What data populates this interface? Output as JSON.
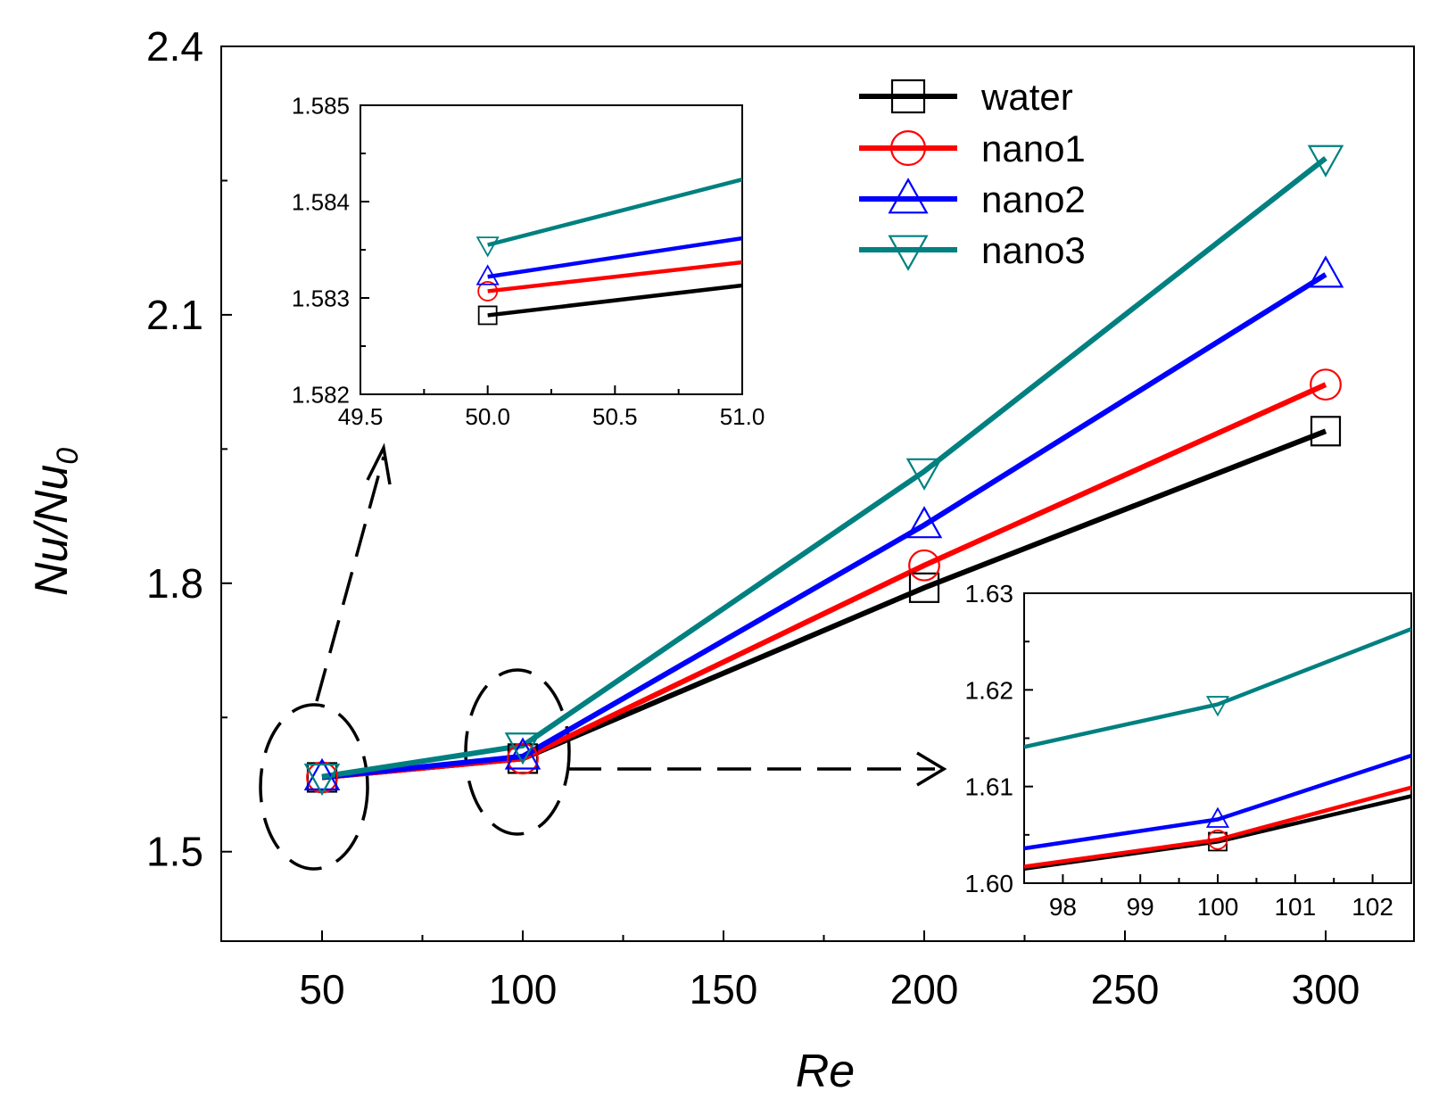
{
  "chart_data": [
    {
      "type": "line",
      "role": "main",
      "categories": [
        "50",
        "100",
        "200",
        "300"
      ],
      "xlabel": "Re",
      "ylabel": "Nu/Nu",
      "ylabel_sub": "0",
      "x_tick_labels": [
        "50",
        "100",
        "150",
        "200",
        "250",
        "300"
      ],
      "y_tick_labels": [
        "1.5",
        "1.8",
        "2.1",
        "2.4"
      ],
      "ylim": [
        1.4,
        2.4
      ],
      "series": [
        {
          "name": "water",
          "marker": "square",
          "color": "#000000",
          "values": [
            1.583,
            1.604,
            1.795,
            1.97
          ]
        },
        {
          "name": "nano1",
          "marker": "circle",
          "color": "#ff0000",
          "values": [
            1.583,
            1.604,
            1.82,
            2.022
          ]
        },
        {
          "name": "nano2",
          "marker": "triangle-up",
          "color": "#0000ff",
          "values": [
            1.5832,
            1.6065,
            1.865,
            2.145
          ]
        },
        {
          "name": "nano3",
          "marker": "triangle-down",
          "color": "#008080",
          "values": [
            1.5838,
            1.6185,
            1.925,
            2.275
          ]
        }
      ]
    },
    {
      "type": "line",
      "role": "inset-top-left",
      "x_tick_labels": [
        "49.5",
        "50.0",
        "50.5",
        "51.0"
      ],
      "y_tick_labels": [
        "1.582",
        "1.583",
        "1.584",
        "1.585"
      ],
      "xlim": [
        49.5,
        51.0
      ],
      "ylim": [
        1.582,
        1.585
      ],
      "series": [
        {
          "name": "water",
          "marker": "square",
          "color": "#000000",
          "x": [
            50.0,
            51.0
          ],
          "values": [
            1.58282,
            1.58313
          ]
        },
        {
          "name": "nano1",
          "marker": "circle",
          "color": "#ff0000",
          "x": [
            50.0,
            51.0
          ],
          "values": [
            1.58307,
            1.58337
          ]
        },
        {
          "name": "nano2",
          "marker": "triangle-up",
          "color": "#0000ff",
          "x": [
            50.0,
            51.0
          ],
          "values": [
            1.58322,
            1.58362
          ]
        },
        {
          "name": "nano3",
          "marker": "triangle-down",
          "color": "#008080",
          "x": [
            50.0,
            51.0
          ],
          "values": [
            1.58355,
            1.58423
          ]
        }
      ]
    },
    {
      "type": "line",
      "role": "inset-bottom-right",
      "x_tick_labels": [
        "98",
        "99",
        "100",
        "101",
        "102"
      ],
      "y_tick_labels": [
        "1.60",
        "1.61",
        "1.62",
        "1.63"
      ],
      "xlim": [
        97.5,
        102.5
      ],
      "ylim": [
        1.6,
        1.63
      ],
      "series": [
        {
          "name": "water",
          "marker": "square",
          "color": "#000000",
          "x": [
            97.5,
            100,
            102.5
          ],
          "values": [
            1.6015,
            1.6043,
            1.609
          ]
        },
        {
          "name": "nano1",
          "marker": "circle",
          "color": "#ff0000",
          "x": [
            97.5,
            100,
            102.5
          ],
          "values": [
            1.6017,
            1.6045,
            1.6099
          ]
        },
        {
          "name": "nano2",
          "marker": "triangle-up",
          "color": "#0000ff",
          "x": [
            97.5,
            100,
            102.5
          ],
          "values": [
            1.6036,
            1.6066,
            1.6132
          ]
        },
        {
          "name": "nano3",
          "marker": "triangle-down",
          "color": "#008080",
          "x": [
            97.5,
            100,
            102.5
          ],
          "values": [
            1.6141,
            1.6185,
            1.6263
          ]
        }
      ]
    }
  ],
  "legend": [
    {
      "label": "water",
      "marker": "square",
      "color": "#000000"
    },
    {
      "label": "nano1",
      "marker": "circle",
      "color": "#ff0000"
    },
    {
      "label": "nano2",
      "marker": "triangle-up",
      "color": "#0000ff"
    },
    {
      "label": "nano3",
      "marker": "triangle-down",
      "color": "#008080"
    }
  ]
}
